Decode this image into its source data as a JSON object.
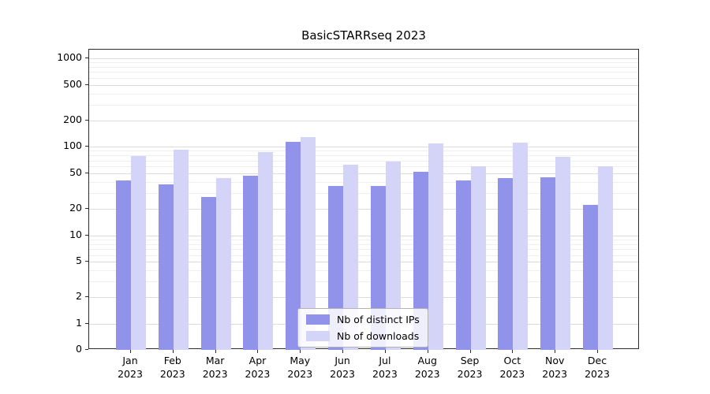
{
  "chart_data": {
    "type": "bar",
    "title": "BasicSTARRseq 2023",
    "months": [
      "Jan",
      "Feb",
      "Mar",
      "Apr",
      "May",
      "Jun",
      "Jul",
      "Aug",
      "Sep",
      "Oct",
      "Nov",
      "Dec"
    ],
    "year": "2023",
    "series": [
      {
        "name": "Nb of distinct IPs",
        "color": "#9192ea",
        "values": [
          42,
          38,
          27,
          47,
          115,
          36,
          36,
          52,
          42,
          44,
          45,
          22
        ]
      },
      {
        "name": "Nb of downloads",
        "color": "#d3d4f7",
        "values": [
          78,
          92,
          44,
          88,
          130,
          63,
          68,
          110,
          60,
          112,
          77,
          60
        ]
      }
    ],
    "y_ticks": [
      0,
      1,
      2,
      5,
      10,
      20,
      50,
      100,
      200,
      500,
      1000
    ],
    "y_scale": "symlog",
    "ylim": [
      0,
      1300
    ],
    "xlabel": "",
    "ylabel": "",
    "grid": true,
    "legend_position": "lower center"
  }
}
